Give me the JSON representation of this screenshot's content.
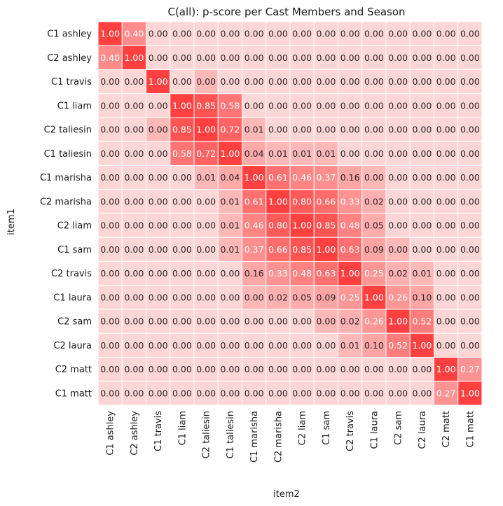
{
  "chart_data": {
    "type": "heatmap",
    "title": "C(all): p-score per Cast Members and Season",
    "xlabel": "item2",
    "ylabel": "item1",
    "x_categories": [
      "C1 ashley",
      "C2 ashley",
      "C1 travis",
      "C1 liam",
      "C2 taliesin",
      "C1 taliesin",
      "C1 marisha",
      "C2 marisha",
      "C2 liam",
      "C1 sam",
      "C2 travis",
      "C1 laura",
      "C2 sam",
      "C2 laura",
      "C2 matt",
      "C1 matt"
    ],
    "y_categories": [
      "C1 ashley",
      "C2 ashley",
      "C1 travis",
      "C1 liam",
      "C2 taliesin",
      "C1 taliesin",
      "C1 marisha",
      "C2 marisha",
      "C2 liam",
      "C1 sam",
      "C2 travis",
      "C1 laura",
      "C2 sam",
      "C2 laura",
      "C2 matt",
      "C1 matt"
    ],
    "value_range": [
      0,
      1
    ],
    "colors": {
      "low": "#ffd6d6",
      "high": "#ff4040",
      "text_dark": "#262626",
      "text_light": "#ffffff",
      "grid": "#ffffff"
    },
    "grid": true,
    "legend": "none",
    "cell_labels": [
      [
        "1.00",
        "0.40",
        "0.00",
        "0.00",
        "0.00",
        "0.00",
        "0.00",
        "0.00",
        "0.00",
        "0.00",
        "0.00",
        "0.00",
        "0.00",
        "0.00",
        "0.00",
        "0.00"
      ],
      [
        "0.40",
        "1.00",
        "0.00",
        "0.00",
        "0.00",
        "0.00",
        "0.00",
        "0.00",
        "0.00",
        "0.00",
        "0.00",
        "0.00",
        "0.00",
        "0.00",
        "0.00",
        "0.00"
      ],
      [
        "0.00",
        "0.00",
        "1.00",
        "0.00",
        "0.00",
        "0.00",
        "0.00",
        "0.00",
        "0.00",
        "0.00",
        "0.00",
        "0.00",
        "0.00",
        "0.00",
        "0.00",
        "0.00"
      ],
      [
        "0.00",
        "0.00",
        "0.00",
        "1.00",
        "0.85",
        "0.58",
        "0.00",
        "0.00",
        "0.00",
        "0.00",
        "0.00",
        "0.00",
        "0.00",
        "0.00",
        "0.00",
        "0.00"
      ],
      [
        "0.00",
        "0.00",
        "0.00",
        "0.85",
        "1.00",
        "0.72",
        "0.01",
        "0.00",
        "0.00",
        "0.00",
        "0.00",
        "0.00",
        "0.00",
        "0.00",
        "0.00",
        "0.00"
      ],
      [
        "0.00",
        "0.00",
        "0.00",
        "0.58",
        "0.72",
        "1.00",
        "0.04",
        "0.01",
        "0.01",
        "0.01",
        "0.00",
        "0.00",
        "0.00",
        "0.00",
        "0.00",
        "0.00"
      ],
      [
        "0.00",
        "0.00",
        "0.00",
        "0.00",
        "0.01",
        "0.04",
        "1.00",
        "0.61",
        "0.46",
        "0.37",
        "0.16",
        "0.00",
        "0.00",
        "0.00",
        "0.00",
        "0.00"
      ],
      [
        "0.00",
        "0.00",
        "0.00",
        "0.00",
        "0.00",
        "0.01",
        "0.61",
        "1.00",
        "0.80",
        "0.66",
        "0.33",
        "0.02",
        "0.00",
        "0.00",
        "0.00",
        "0.00"
      ],
      [
        "0.00",
        "0.00",
        "0.00",
        "0.00",
        "0.00",
        "0.01",
        "0.46",
        "0.80",
        "1.00",
        "0.85",
        "0.48",
        "0.05",
        "0.00",
        "0.00",
        "0.00",
        "0.00"
      ],
      [
        "0.00",
        "0.00",
        "0.00",
        "0.00",
        "0.00",
        "0.01",
        "0.37",
        "0.66",
        "0.85",
        "1.00",
        "0.63",
        "0.09",
        "0.00",
        "0.00",
        "0.00",
        "0.00"
      ],
      [
        "0.00",
        "0.00",
        "0.00",
        "0.00",
        "0.00",
        "0.00",
        "0.16",
        "0.33",
        "0.48",
        "0.63",
        "1.00",
        "0.25",
        "0.02",
        "0.01",
        "0.00",
        "0.00"
      ],
      [
        "0.00",
        "0.00",
        "0.00",
        "0.00",
        "0.00",
        "0.00",
        "0.00",
        "0.02",
        "0.05",
        "0.09",
        "0.25",
        "1.00",
        "0.26",
        "0.10",
        "0.00",
        "0.00"
      ],
      [
        "0.00",
        "0.00",
        "0.00",
        "0.00",
        "0.00",
        "0.00",
        "0.00",
        "0.00",
        "0.00",
        "0.00",
        "0.02",
        "0.26",
        "1.00",
        "0.52",
        "0.00",
        "0.00"
      ],
      [
        "0.00",
        "0.00",
        "0.00",
        "0.00",
        "0.00",
        "0.00",
        "0.00",
        "0.00",
        "0.00",
        "0.00",
        "0.01",
        "0.10",
        "0.52",
        "1.00",
        "0.00",
        "0.00"
      ],
      [
        "0.00",
        "0.00",
        "0.00",
        "0.00",
        "0.00",
        "0.00",
        "0.00",
        "0.00",
        "0.00",
        "0.00",
        "0.00",
        "0.00",
        "0.00",
        "0.00",
        "1.00",
        "0.27"
      ],
      [
        "0.00",
        "0.00",
        "0.00",
        "0.00",
        "0.00",
        "0.00",
        "0.00",
        "0.00",
        "0.00",
        "0.00",
        "0.00",
        "0.00",
        "0.00",
        "0.00",
        "0.27",
        "1.00"
      ]
    ],
    "cell_shading": [
      [
        1.0,
        0.5,
        0,
        0,
        0,
        0,
        0,
        0,
        0,
        0,
        0,
        0,
        0,
        0,
        0,
        0
      ],
      [
        0.5,
        1.0,
        0,
        0,
        0,
        0,
        0,
        0,
        0,
        0,
        0,
        0,
        0,
        0,
        0,
        0
      ],
      [
        0,
        0,
        1.0,
        0,
        0.2,
        0,
        0,
        0,
        0,
        0,
        0,
        0,
        0,
        0,
        0,
        0
      ],
      [
        0,
        0,
        0,
        1.0,
        0.87,
        0.65,
        0,
        0,
        0,
        0,
        0,
        0,
        0,
        0,
        0,
        0
      ],
      [
        0,
        0,
        0.2,
        0.87,
        1.0,
        0.77,
        0.2,
        0,
        0,
        0,
        0,
        0,
        0,
        0,
        0,
        0
      ],
      [
        0,
        0,
        0,
        0.65,
        0.77,
        1.0,
        0.3,
        0.2,
        0.2,
        0.2,
        0,
        0,
        0,
        0,
        0,
        0
      ],
      [
        0,
        0,
        0,
        0,
        0.2,
        0.3,
        1.0,
        0.68,
        0.55,
        0.48,
        0.32,
        0.2,
        0,
        0,
        0,
        0
      ],
      [
        0,
        0,
        0,
        0,
        0,
        0.2,
        0.68,
        1.0,
        0.82,
        0.71,
        0.45,
        0.25,
        0,
        0,
        0,
        0
      ],
      [
        0,
        0,
        0,
        0,
        0,
        0.2,
        0.55,
        0.82,
        1.0,
        0.87,
        0.57,
        0.28,
        0,
        0,
        0,
        0
      ],
      [
        0,
        0,
        0,
        0,
        0,
        0.2,
        0.48,
        0.71,
        0.87,
        1.0,
        0.68,
        0.33,
        0.2,
        0,
        0,
        0
      ],
      [
        0,
        0,
        0,
        0,
        0,
        0,
        0.32,
        0.45,
        0.57,
        0.68,
        1.0,
        0.43,
        0.25,
        0.2,
        0,
        0
      ],
      [
        0,
        0,
        0,
        0,
        0,
        0,
        0.2,
        0.25,
        0.28,
        0.33,
        0.43,
        1.0,
        0.43,
        0.33,
        0,
        0
      ],
      [
        0,
        0,
        0,
        0,
        0,
        0,
        0,
        0,
        0,
        0.2,
        0.25,
        0.43,
        1.0,
        0.6,
        0,
        0
      ],
      [
        0,
        0,
        0,
        0,
        0,
        0,
        0,
        0,
        0,
        0,
        0.2,
        0.33,
        0.6,
        1.0,
        0,
        0
      ],
      [
        0,
        0,
        0,
        0,
        0,
        0,
        0,
        0,
        0,
        0,
        0,
        0,
        0,
        0,
        1.0,
        0.45
      ],
      [
        0,
        0,
        0,
        0,
        0,
        0,
        0,
        0,
        0,
        0,
        0,
        0,
        0,
        0,
        0.45,
        1.0
      ]
    ]
  }
}
